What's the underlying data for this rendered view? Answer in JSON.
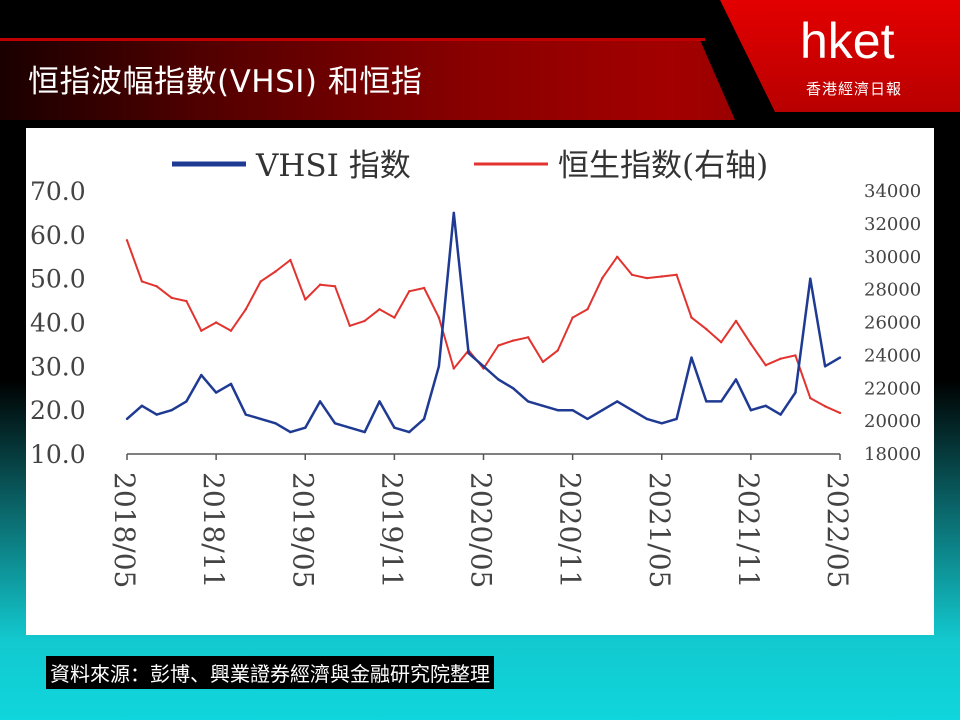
{
  "header": {
    "title": "恒指波幅指數(VHSI) 和恒指",
    "logo_main": "hket",
    "logo_sub": "香港經濟日報"
  },
  "footer": {
    "source": "資料來源：彭博、興業證券經濟與金融研究院整理"
  },
  "colors": {
    "vhsi": "#1f3a93",
    "hsi": "#e2332f",
    "accent_red": "#c00000"
  },
  "chart_data": {
    "type": "line",
    "legend": {
      "placement": "top",
      "entries": [
        "VHSI 指数",
        "恒生指数(右轴)"
      ]
    },
    "x_tick_labels": [
      "2018/05",
      "2018/11",
      "2019/05",
      "2019/11",
      "2020/05",
      "2020/11",
      "2021/05",
      "2021/11",
      "2022/05"
    ],
    "y_left": {
      "ticks": [
        "10.0",
        "20.0",
        "30.0",
        "40.0",
        "50.0",
        "60.0",
        "70.0"
      ],
      "range": [
        10,
        70
      ]
    },
    "y_right": {
      "ticks": [
        "18000",
        "20000",
        "22000",
        "24000",
        "26000",
        "28000",
        "30000",
        "32000",
        "34000"
      ],
      "range": [
        18000,
        34000
      ]
    },
    "grid": false,
    "series": [
      {
        "name": "VHSI 指数",
        "axis": "left",
        "x": [
          "2018-05",
          "2018-06",
          "2018-07",
          "2018-08",
          "2018-09",
          "2018-10",
          "2018-11",
          "2018-12",
          "2019-01",
          "2019-02",
          "2019-03",
          "2019-04",
          "2019-05",
          "2019-06",
          "2019-07",
          "2019-08",
          "2019-09",
          "2019-10",
          "2019-11",
          "2019-12",
          "2020-01",
          "2020-02",
          "2020-03",
          "2020-04",
          "2020-05",
          "2020-06",
          "2020-07",
          "2020-08",
          "2020-09",
          "2020-10",
          "2020-11",
          "2020-12",
          "2021-01",
          "2021-02",
          "2021-03",
          "2021-04",
          "2021-05",
          "2021-06",
          "2021-07",
          "2021-08",
          "2021-09",
          "2021-10",
          "2021-11",
          "2021-12",
          "2022-01",
          "2022-02",
          "2022-03",
          "2022-04",
          "2022-05"
        ],
        "values": [
          18,
          21,
          19,
          20,
          22,
          28,
          24,
          26,
          19,
          18,
          17,
          15,
          16,
          22,
          17,
          16,
          15,
          22,
          16,
          15,
          18,
          30,
          65,
          33,
          30,
          27,
          25,
          22,
          21,
          20,
          20,
          18,
          20,
          22,
          20,
          18,
          17,
          18,
          32,
          22,
          22,
          27,
          20,
          21,
          19,
          24,
          50,
          30,
          32
        ]
      },
      {
        "name": "恒生指数(右轴)",
        "axis": "right",
        "x": [
          "2018-05",
          "2018-06",
          "2018-07",
          "2018-08",
          "2018-09",
          "2018-10",
          "2018-11",
          "2018-12",
          "2019-01",
          "2019-02",
          "2019-03",
          "2019-04",
          "2019-05",
          "2019-06",
          "2019-07",
          "2019-08",
          "2019-09",
          "2019-10",
          "2019-11",
          "2019-12",
          "2020-01",
          "2020-02",
          "2020-03",
          "2020-04",
          "2020-05",
          "2020-06",
          "2020-07",
          "2020-08",
          "2020-09",
          "2020-10",
          "2020-11",
          "2020-12",
          "2021-01",
          "2021-02",
          "2021-03",
          "2021-04",
          "2021-05",
          "2021-06",
          "2021-07",
          "2021-08",
          "2021-09",
          "2021-10",
          "2021-11",
          "2021-12",
          "2022-01",
          "2022-02",
          "2022-03",
          "2022-04",
          "2022-05"
        ],
        "values": [
          31000,
          28500,
          28200,
          27500,
          27300,
          25500,
          26000,
          25500,
          26800,
          28500,
          29100,
          29800,
          27400,
          28300,
          28200,
          25800,
          26100,
          26800,
          26300,
          27900,
          28100,
          26300,
          23200,
          24300,
          23200,
          24600,
          24900,
          25100,
          23600,
          24300,
          26300,
          26800,
          28700,
          30000,
          28900,
          28700,
          28800,
          28900,
          26300,
          25600,
          24800,
          26100,
          24700,
          23400,
          23800,
          24000,
          21400,
          20900,
          20500
        ]
      }
    ]
  }
}
